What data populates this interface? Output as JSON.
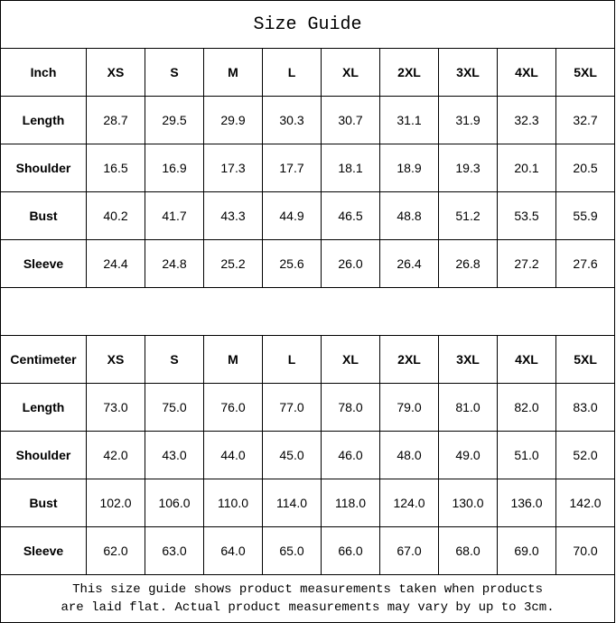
{
  "title": "Size Guide",
  "sizes": [
    "XS",
    "S",
    "M",
    "L",
    "XL",
    "2XL",
    "3XL",
    "4XL",
    "5XL"
  ],
  "tables": [
    {
      "unit": "Inch",
      "rows": [
        {
          "label": "Length",
          "values": [
            "28.7",
            "29.5",
            "29.9",
            "30.3",
            "30.7",
            "31.1",
            "31.9",
            "32.3",
            "32.7"
          ]
        },
        {
          "label": "Shoulder",
          "values": [
            "16.5",
            "16.9",
            "17.3",
            "17.7",
            "18.1",
            "18.9",
            "19.3",
            "20.1",
            "20.5"
          ]
        },
        {
          "label": "Bust",
          "values": [
            "40.2",
            "41.7",
            "43.3",
            "44.9",
            "46.5",
            "48.8",
            "51.2",
            "53.5",
            "55.9"
          ]
        },
        {
          "label": "Sleeve",
          "values": [
            "24.4",
            "24.8",
            "25.2",
            "25.6",
            "26.0",
            "26.4",
            "26.8",
            "27.2",
            "27.6"
          ]
        }
      ]
    },
    {
      "unit": "Centimeter",
      "rows": [
        {
          "label": "Length",
          "values": [
            "73.0",
            "75.0",
            "76.0",
            "77.0",
            "78.0",
            "79.0",
            "81.0",
            "82.0",
            "83.0"
          ]
        },
        {
          "label": "Shoulder",
          "values": [
            "42.0",
            "43.0",
            "44.0",
            "45.0",
            "46.0",
            "48.0",
            "49.0",
            "51.0",
            "52.0"
          ]
        },
        {
          "label": "Bust",
          "values": [
            "102.0",
            "106.0",
            "110.0",
            "114.0",
            "118.0",
            "124.0",
            "130.0",
            "136.0",
            "142.0"
          ]
        },
        {
          "label": "Sleeve",
          "values": [
            "62.0",
            "63.0",
            "64.0",
            "65.0",
            "66.0",
            "67.0",
            "68.0",
            "69.0",
            "70.0"
          ]
        }
      ]
    }
  ],
  "note_line1": "This size guide shows product measurements taken when products",
  "note_line2": "are laid flat. Actual product measurements may vary by up to 3cm."
}
